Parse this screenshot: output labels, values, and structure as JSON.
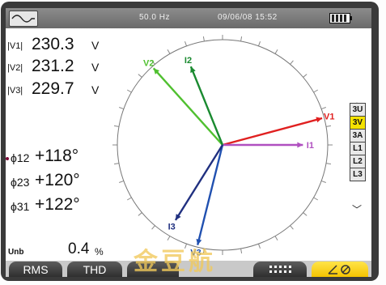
{
  "status": {
    "frequency": "50.0 Hz",
    "datetime": "09/06/08  15:52",
    "icons": [
      "waveform-icon",
      "battery-icon"
    ]
  },
  "voltages": [
    {
      "label": "|V1|",
      "value": "230.3",
      "unit": "V"
    },
    {
      "label": "|V2|",
      "value": "231.2",
      "unit": "V"
    },
    {
      "label": "|V3|",
      "value": "229.7",
      "unit": "V"
    }
  ],
  "phases": [
    {
      "label": "ϕ12",
      "value": "+118°"
    },
    {
      "label": "ϕ23",
      "value": "+120°"
    },
    {
      "label": "ϕ31",
      "value": "+122°"
    }
  ],
  "unbalance": {
    "label": "Unb",
    "value": "0.4",
    "unit": "%"
  },
  "diagram": {
    "vectors": [
      {
        "label": "V1",
        "angle_deg": 15,
        "magnitude": 1.0,
        "color": "#e02020"
      },
      {
        "label": "I1",
        "angle_deg": 0,
        "magnitude": 0.78,
        "color": "#b050c0"
      },
      {
        "label": "V2",
        "angle_deg": 132,
        "magnitude": 1.0,
        "color": "#50c030"
      },
      {
        "label": "I2",
        "angle_deg": 112,
        "magnitude": 0.82,
        "color": "#1a8a30"
      },
      {
        "label": "V3",
        "angle_deg": 256,
        "magnitude": 1.0,
        "color": "#2050b0"
      },
      {
        "label": "I3",
        "angle_deg": 238,
        "magnitude": 0.86,
        "color": "#203080"
      }
    ]
  },
  "side_buttons": [
    {
      "label": "3U",
      "active": false
    },
    {
      "label": "3V",
      "active": true
    },
    {
      "label": "3A",
      "active": false
    },
    {
      "label": "L1",
      "active": false
    },
    {
      "label": "L2",
      "active": false
    },
    {
      "label": "L3",
      "active": false
    }
  ],
  "tabs": {
    "rms": "RMS",
    "thd": "THD",
    "menu_icon": "grid-icon",
    "phasor_icon": "phasor-icon"
  },
  "watermark": "金豆航"
}
